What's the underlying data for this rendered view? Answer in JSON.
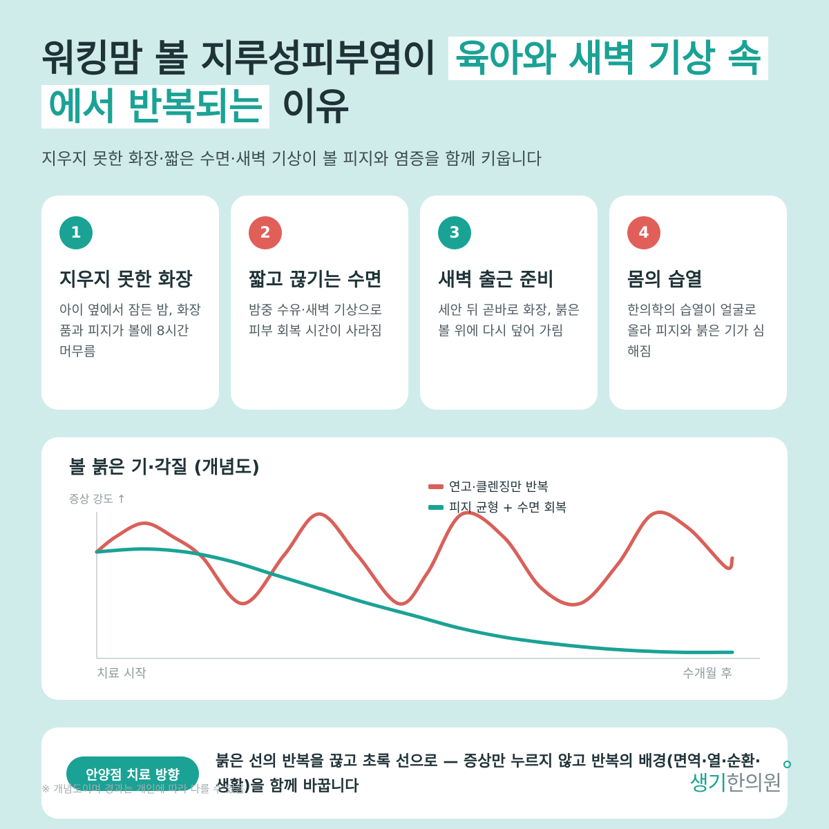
{
  "header": {
    "title_part1": "워킹맘 볼 지루성피부염이 ",
    "title_highlight": "육아와 새벽 기상 속에서 반복되는",
    "title_part2": " 이유",
    "subtitle": "지우지 못한 화장·짧은 수면·새벽 기상이 볼 피지와 염증을 함께 키웁니다"
  },
  "cards": [
    {
      "num": "1",
      "title": "지우지 못한 화장",
      "desc": "아이 옆에서 잠든 밤, 화장품과 피지가 볼에 8시간 머무름",
      "badge_color": "#1aa295"
    },
    {
      "num": "2",
      "title": "짧고 끊기는 수면",
      "desc": "밤중 수유·새벽 기상으로 피부 회복 시간이 사라짐",
      "badge_color": "#e05f59"
    },
    {
      "num": "3",
      "title": "새벽 출근 준비",
      "desc": "세안 뒤 곧바로 화장, 붉은 볼 위에 다시 덮어 가림",
      "badge_color": "#1aa295"
    },
    {
      "num": "4",
      "title": "몸의 습열",
      "desc": "한의학의 습열이 얼굴로 올라 피지와 붉은 기가 심해짐",
      "badge_color": "#e05f59"
    }
  ],
  "chart_data": {
    "type": "line",
    "title": "볼 붉은 기·각질 (개념도)",
    "ylabel": "증상 강도 ↑",
    "xlabel_start": "치료 시작",
    "xlabel_end": "수개월 후",
    "xlim": [
      0,
      1
    ],
    "ylim": [
      0,
      1
    ],
    "legend_position": "top-right",
    "grid": false,
    "series": [
      {
        "name": "연고·클렌징만 반복",
        "color": "#d9605a",
        "x": [
          0,
          0.03,
          0.075,
          0.12,
          0.165,
          0.23,
          0.295,
          0.35,
          0.41,
          0.475,
          0.52,
          0.575,
          0.64,
          0.7,
          0.76,
          0.82,
          0.875,
          0.93,
          0.99,
          1.0
        ],
        "y": [
          0.7,
          0.8,
          0.89,
          0.8,
          0.67,
          0.36,
          0.68,
          0.95,
          0.68,
          0.36,
          0.56,
          0.95,
          0.8,
          0.46,
          0.36,
          0.62,
          0.95,
          0.86,
          0.6,
          0.66
        ]
      },
      {
        "name": "피지 균형 + 수면 회복",
        "color": "#1aa295",
        "x": [
          0,
          0.07,
          0.14,
          0.21,
          0.28,
          0.35,
          0.42,
          0.5,
          0.57,
          0.64,
          0.71,
          0.78,
          0.85,
          0.92,
          1.0
        ],
        "y": [
          0.7,
          0.72,
          0.7,
          0.64,
          0.55,
          0.46,
          0.37,
          0.28,
          0.2,
          0.14,
          0.1,
          0.07,
          0.05,
          0.04,
          0.04
        ]
      }
    ]
  },
  "bottom": {
    "badge": "안양점 치료 방향",
    "message": "붉은 선의 반복을 끊고 초록 선으로 — 증상만 누르지 않고 반복의 배경(면역·열·순환·생활)을 함께 바꿉니다",
    "note": "※ 개념도이며 경과는 개인에 따라 다를 수 있음",
    "logo_main": "생기",
    "logo_rest": "한의원"
  }
}
